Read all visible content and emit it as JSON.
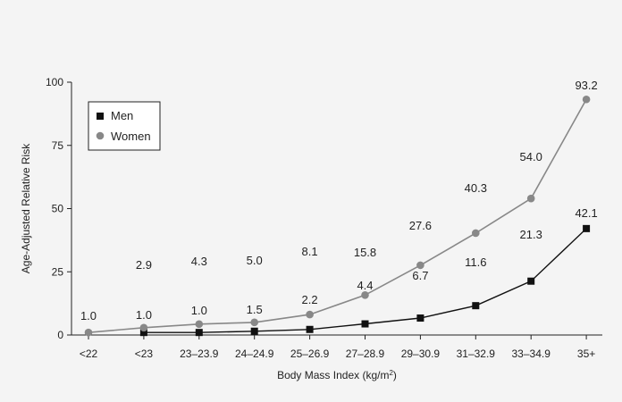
{
  "chart_data": {
    "type": "line",
    "title": "",
    "xlabel": "Body Mass Index (kg/m",
    "xlabel_superscript": "2",
    "xlabel_suffix": ")",
    "ylabel": "Age-Adjusted Relative Risk",
    "ylim": [
      0,
      100
    ],
    "yticks": [
      0,
      25,
      50,
      75,
      100
    ],
    "categories": [
      "<22",
      "<23",
      "23–23.9",
      "24–24.9",
      "25–26.9",
      "27–28.9",
      "29–30.9",
      "31–32.9",
      "33–34.9",
      "35+"
    ],
    "series": [
      {
        "name": "Men",
        "marker": "square",
        "color": "#111111",
        "values": [
          null,
          1.0,
          1.0,
          1.5,
          2.2,
          4.4,
          6.7,
          11.6,
          21.3,
          42.1
        ],
        "labels": [
          null,
          "1.0",
          "1.0",
          "1.5",
          "2.2",
          "4.4",
          "6.7",
          "11.6",
          "21.3",
          "42.1"
        ]
      },
      {
        "name": "Women",
        "marker": "circle",
        "color": "#888888",
        "values": [
          1.0,
          2.9,
          4.3,
          5.0,
          8.1,
          15.8,
          27.6,
          40.3,
          54.0,
          93.2
        ],
        "labels": [
          "1.0",
          "2.9",
          "4.3",
          "5.0",
          "8.1",
          "15.8",
          "27.6",
          "40.3",
          "54.0",
          "93.2"
        ]
      }
    ],
    "legend_position": "top-left"
  }
}
